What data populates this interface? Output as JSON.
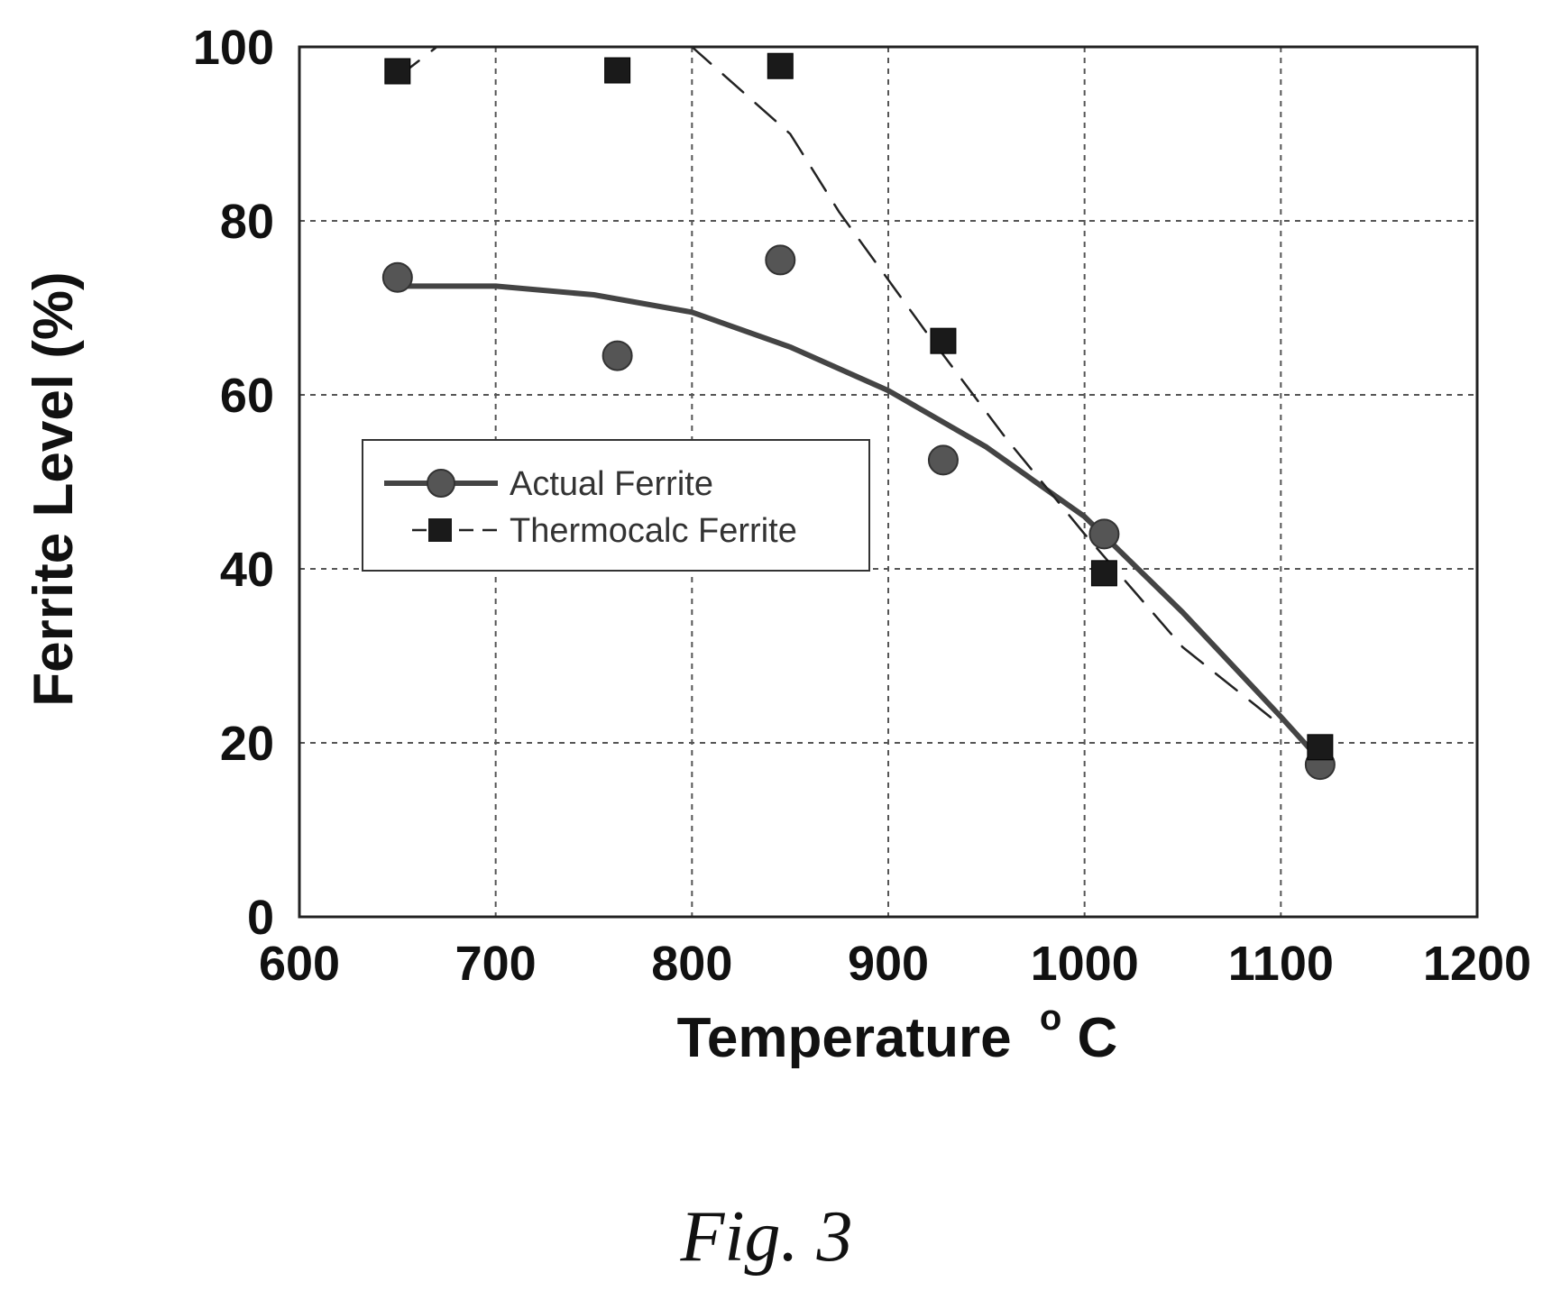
{
  "chart_data": {
    "type": "scatter",
    "xlabel": "Temperature",
    "xlabel_unit_sup": "o",
    "xlabel_unit": "C",
    "ylabel": "Ferrite Level (%)",
    "xlim": [
      600,
      1200
    ],
    "ylim": [
      0,
      100
    ],
    "x_ticks": [
      600,
      700,
      800,
      900,
      1000,
      1100,
      1200
    ],
    "y_ticks": [
      0,
      20,
      40,
      60,
      80,
      100
    ],
    "grid": true,
    "legend_position": "middle-left",
    "series": [
      {
        "name": "Actual Ferrite",
        "marker": "circle",
        "line_style": "solid",
        "color": "#444444",
        "x": [
          650,
          762,
          845,
          928,
          1010,
          1120
        ],
        "y": [
          73.5,
          64.5,
          75.5,
          52.5,
          44,
          17.5
        ],
        "fit_curve": {
          "x": [
            650,
            700,
            750,
            800,
            850,
            900,
            950,
            1000,
            1050,
            1100,
            1120
          ],
          "y": [
            72.5,
            72.5,
            71.5,
            69.5,
            65.5,
            60.5,
            54,
            46,
            35,
            23,
            18
          ]
        }
      },
      {
        "name": "Thermocalc Ferrite",
        "marker": "square",
        "line_style": "dashed",
        "color": "#222222",
        "x": [
          650,
          762,
          845,
          928,
          1010,
          1120
        ],
        "y": [
          97.2,
          97.3,
          97.8,
          66.2,
          39.5,
          19.5
        ],
        "fit_curve": {
          "x": [
            650,
            670,
            800,
            850,
            875,
            920,
            960,
            1000,
            1050,
            1100
          ],
          "y": [
            96.5,
            100,
            100,
            90,
            81,
            67,
            55,
            44,
            31,
            22
          ]
        }
      }
    ]
  },
  "caption": "Fig. 3"
}
